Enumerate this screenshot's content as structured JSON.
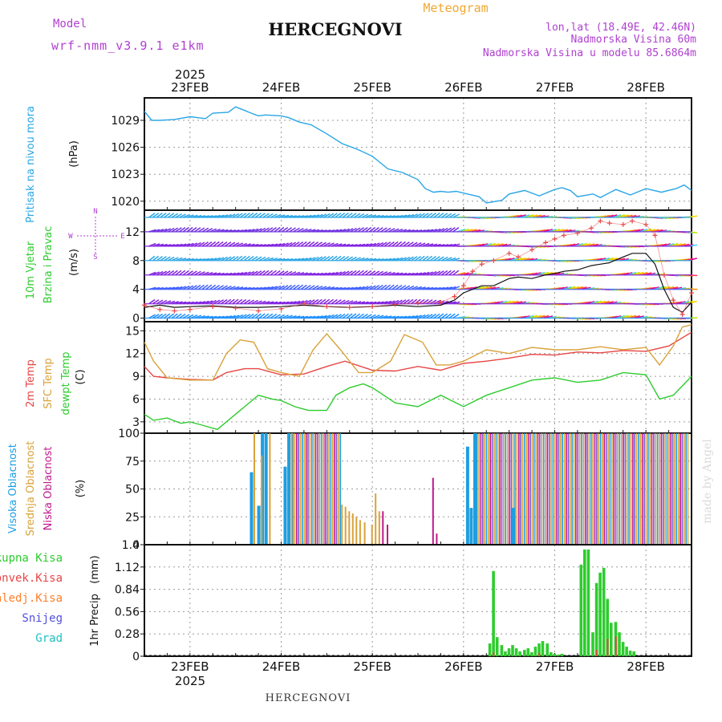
{
  "header": {
    "model_label": "Model",
    "model_name": "wrf-nmm_v3.9.1 e1km",
    "station": "HERCEGNOVI",
    "meteogram": "Meteogram",
    "coords": "lon,lat (18.49E, 42.46N)",
    "elevation": "Nadmorska Visina 60m",
    "model_elevation": "Nadmorska Visina u modelu 85.6864m"
  },
  "footer": {
    "station": "HERCEGNOVI",
    "watermark": "made by Angel"
  },
  "colors": {
    "pressure": "#2aa6e6",
    "temp2m": "#e84646",
    "sfc_temp": "#d9a23a",
    "dewpt": "#2ecc2e",
    "high_cloud": "#1e9ee0",
    "mid_cloud": "#d9a23a",
    "low_cloud": "#c0188c",
    "total_precip": "#2ecc2e",
    "conv_precip": "#e84646",
    "frozen_precip": "#ff7f2a",
    "snow": "#5050e0",
    "graupel": "#20c0c0",
    "title_purple": "#b040d0",
    "meteogram_orange": "#f0a830"
  },
  "chart_data": [
    {
      "type": "line",
      "panel": "pressure",
      "ylabel": [
        "Pritisak na nivou mora",
        "(hPa)"
      ],
      "ylim": [
        1019,
        1031.5
      ],
      "yticks": [
        1020,
        1023,
        1026,
        1029
      ],
      "x_unit": "days since 23FEB 00Z",
      "top_axis": {
        "year": "2025",
        "tick_labels": [
          "23FEB",
          "24FEB",
          "25FEB",
          "26FEB",
          "27FEB",
          "28FEB"
        ]
      },
      "series": [
        {
          "name": "Pritisak",
          "x": [
            -0.5,
            -0.42,
            -0.33,
            -0.17,
            0,
            0.17,
            0.25,
            0.42,
            0.5,
            0.6,
            0.67,
            0.75,
            0.83,
            1,
            1.08,
            1.2,
            1.33,
            1.5,
            1.67,
            1.83,
            2,
            2.17,
            2.33,
            2.5,
            2.58,
            2.67,
            2.75,
            2.83,
            2.92,
            3,
            3.17,
            3.25,
            3.42,
            3.5,
            3.67,
            3.83,
            4,
            4.08,
            4.17,
            4.25,
            4.42,
            4.5,
            4.67,
            4.83,
            5,
            5.17,
            5.33,
            5.42,
            5.5
          ],
          "y": [
            1030,
            1029,
            1029,
            1029.1,
            1029.4,
            1029.2,
            1029.8,
            1029.9,
            1030.5,
            1030.1,
            1029.8,
            1029.5,
            1029.6,
            1029.5,
            1029.3,
            1028.8,
            1028.5,
            1027.5,
            1026.4,
            1025.8,
            1025,
            1023.6,
            1023.2,
            1022.4,
            1021.4,
            1021.0,
            1021.1,
            1021.0,
            1021.1,
            1020.9,
            1020.5,
            1019.8,
            1020.1,
            1020.8,
            1021.2,
            1020.6,
            1021.3,
            1021.5,
            1021.2,
            1020.5,
            1020.8,
            1020.4,
            1021.3,
            1020.7,
            1021.4,
            1021.0,
            1021.4,
            1021.8,
            1021.2
          ]
        }
      ]
    },
    {
      "type": "line",
      "panel": "wind",
      "ylabel": [
        "10m Vjetar",
        "Brzina i Pravac",
        "(m/s)"
      ],
      "compass": {
        "n": "N",
        "s": "S",
        "e": "E",
        "w": "W"
      },
      "ylim": [
        -0.5,
        15
      ],
      "yticks": [
        0,
        4,
        8,
        12
      ],
      "barb_rows": [
        0,
        2,
        4,
        6,
        8,
        10,
        12,
        14
      ],
      "series": [
        {
          "name": "Brzina (line)",
          "x": [
            -0.5,
            -0.33,
            -0.17,
            0,
            0.25,
            0.5,
            0.75,
            1,
            1.25,
            1.5,
            1.75,
            2,
            2.25,
            2.5,
            2.75,
            2.9,
            3,
            3.1,
            3.2,
            3.33,
            3.5,
            3.6,
            3.75,
            3.9,
            4,
            4.1,
            4.25,
            4.4,
            4.5,
            4.6,
            4.75,
            4.85,
            5,
            5.1,
            5.2,
            5.3,
            5.4,
            5.5
          ],
          "y": [
            1.5,
            1.8,
            1.5,
            1.6,
            1.7,
            1.5,
            1.5,
            1.6,
            1.8,
            1.6,
            1.5,
            1.6,
            1.8,
            1.6,
            1.8,
            2.5,
            3.5,
            4.0,
            4.5,
            4.5,
            5.5,
            5.7,
            5.5,
            6.0,
            6.2,
            6.5,
            6.7,
            7.3,
            7.5,
            7.7,
            8.5,
            9.0,
            9.0,
            7.5,
            4.0,
            1.5,
            0.8,
            2.2
          ]
        },
        {
          "name": "Udari (crosses)",
          "x": [
            -0.5,
            -0.33,
            -0.17,
            0,
            0.25,
            0.5,
            0.75,
            1,
            1.25,
            1.5,
            1.75,
            2,
            2.25,
            2.5,
            2.75,
            2.9,
            3,
            3.1,
            3.2,
            3.33,
            3.5,
            3.6,
            3.75,
            3.9,
            4,
            4.1,
            4.25,
            4.4,
            4.5,
            4.6,
            4.75,
            4.85,
            5,
            5.1,
            5.2,
            5.3,
            5.4,
            5.5
          ],
          "y": [
            1.8,
            1.2,
            1.0,
            1.2,
            1.6,
            1.4,
            1.0,
            1.3,
            2.0,
            1.6,
            1.5,
            1.6,
            1.9,
            2.1,
            2.2,
            3.0,
            4.5,
            6.5,
            7.5,
            8.0,
            9.0,
            8.5,
            9.5,
            10.5,
            11.0,
            11.5,
            11.8,
            12.5,
            13.5,
            13.2,
            13.0,
            13.5,
            13.0,
            11.5,
            6.0,
            2.5,
            0.5,
            3.5
          ]
        }
      ]
    },
    {
      "type": "line",
      "panel": "temperature",
      "ylabel": [
        "2m Temp",
        "SFC Temp",
        "dewpt Temp",
        "(C)"
      ],
      "ylim": [
        1.5,
        16.2
      ],
      "yticks": [
        3,
        6,
        9,
        12,
        15
      ],
      "series": [
        {
          "name": "2m Temp",
          "x": [
            -0.5,
            -0.4,
            -0.25,
            0,
            0.25,
            0.4,
            0.6,
            0.75,
            1,
            1.25,
            1.5,
            1.7,
            2,
            2.25,
            2.5,
            2.75,
            3,
            3.25,
            3.5,
            3.75,
            4,
            4.25,
            4.5,
            4.75,
            5,
            5.25,
            5.5
          ],
          "y": [
            10.3,
            9.0,
            8.8,
            8.6,
            8.5,
            9.5,
            10.0,
            10.0,
            9.2,
            9.3,
            10.3,
            11.0,
            9.8,
            9.7,
            10.3,
            9.8,
            10.7,
            11.0,
            11.4,
            11.9,
            11.8,
            12.2,
            12.1,
            12.4,
            12.3,
            13.0,
            14.8
          ]
        },
        {
          "name": "SFC Temp",
          "x": [
            -0.5,
            -0.4,
            -0.25,
            0,
            0.25,
            0.4,
            0.55,
            0.7,
            0.85,
            1,
            1.2,
            1.35,
            1.5,
            1.65,
            1.85,
            2,
            2.2,
            2.35,
            2.55,
            2.7,
            2.85,
            3,
            3.25,
            3.5,
            3.75,
            4,
            4.25,
            4.5,
            4.75,
            5,
            5.15,
            5.3,
            5.4,
            5.5
          ],
          "y": [
            13.5,
            11.0,
            8.8,
            8.5,
            8.5,
            12.0,
            13.8,
            13.5,
            10.0,
            9.5,
            9.0,
            12.5,
            14.6,
            12.5,
            9.5,
            9.5,
            11.0,
            14.5,
            13.5,
            10.5,
            10.5,
            11.0,
            12.5,
            12.0,
            12.8,
            12.5,
            12.5,
            12.9,
            12.5,
            12.8,
            10.5,
            13.0,
            15.5,
            15.8
          ]
        },
        {
          "name": "dewpt Temp",
          "x": [
            -0.5,
            -0.4,
            -0.25,
            -0.1,
            0,
            0.15,
            0.3,
            0.45,
            0.6,
            0.75,
            0.9,
            1,
            1.15,
            1.3,
            1.5,
            1.6,
            1.75,
            1.9,
            2,
            2.25,
            2.5,
            2.75,
            3,
            3.25,
            3.5,
            3.75,
            4,
            4.25,
            4.5,
            4.75,
            5,
            5.15,
            5.3,
            5.5
          ],
          "y": [
            4.0,
            3.2,
            3.5,
            2.8,
            3.0,
            2.5,
            2.0,
            3.5,
            5.0,
            6.5,
            6.0,
            5.8,
            5.0,
            4.5,
            4.5,
            6.5,
            7.5,
            8.0,
            7.5,
            5.5,
            5.0,
            6.5,
            5.0,
            6.5,
            7.5,
            8.5,
            8.8,
            8.2,
            8.5,
            9.5,
            9.2,
            6.0,
            6.5,
            9.0
          ]
        }
      ]
    },
    {
      "type": "bar",
      "panel": "clouds",
      "ylabel": [
        "Visoka Oblacnost",
        "Srednja Oblacnost",
        "Niska Oblacnost",
        "(%)"
      ],
      "ylim": [
        0,
        100
      ],
      "yticks": [
        0,
        25,
        50,
        75,
        100
      ],
      "series": [
        {
          "name": "Visoka Oblacnost",
          "x": [
            0.67,
            0.75,
            0.79,
            0.83,
            1.04,
            1.08,
            3.04,
            3.08,
            3.12,
            3.54
          ],
          "y": [
            65,
            35,
            100,
            100,
            70,
            100,
            88,
            33,
            100,
            33
          ]
        },
        {
          "name": "Srednja Oblacnost",
          "x": [
            0.71,
            0.79,
            0.88,
            1.12,
            1.67,
            1.71,
            1.75,
            1.79,
            1.83,
            1.87,
            1.92,
            2.0,
            2.04,
            2.08
          ],
          "y": [
            100,
            80,
            100,
            100,
            36,
            34,
            30,
            28,
            25,
            22,
            20,
            18,
            46,
            30
          ]
        },
        {
          "name": "Niska Oblacnost",
          "x": [
            2.12,
            2.17,
            2.67,
            2.71
          ],
          "y": [
            30,
            18,
            60,
            10
          ]
        }
      ],
      "dense_blocks": [
        {
          "from": 1.13,
          "to": 1.67,
          "value": 100
        },
        {
          "from": 3.15,
          "to": 5.48,
          "value": 100
        }
      ]
    },
    {
      "type": "bar",
      "panel": "precipitation",
      "ylabel": [
        "1hr Precip",
        "(mm)"
      ],
      "legend": [
        "Ukupna Kisa",
        "Konvek.Kisa",
        "Zaledj.Kisa",
        "Snijeg",
        "Grad"
      ],
      "ylim": [
        0,
        1.4
      ],
      "yticks": [
        0,
        0.28,
        0.56,
        0.84,
        1.12,
        1.4
      ],
      "ytick_labels": [
        "0",
        "0.28",
        "0.56",
        "0.84",
        "1.12",
        "1.4"
      ],
      "bottom_axis": {
        "year": "2025",
        "tick_labels": [
          "23FEB",
          "24FEB",
          "25FEB",
          "26FEB",
          "27FEB",
          "28FEB"
        ]
      },
      "series": [
        {
          "name": "Ukupna Kisa",
          "x": [
            3.29,
            3.33,
            3.37,
            3.42,
            3.46,
            3.5,
            3.54,
            3.58,
            3.62,
            3.67,
            3.71,
            3.75,
            3.79,
            3.83,
            3.87,
            3.92,
            3.96,
            4.0,
            4.04,
            4.08,
            4.29,
            4.33,
            4.37,
            4.42,
            4.46,
            4.5,
            4.54,
            4.58,
            4.62,
            4.67,
            4.71,
            4.75,
            4.79,
            4.83,
            4.87
          ],
          "y": [
            0.16,
            1.07,
            0.24,
            0.14,
            0.06,
            0.1,
            0.14,
            0.1,
            0.06,
            0.08,
            0.1,
            0.05,
            0.12,
            0.16,
            0.19,
            0.16,
            0.05,
            0.03,
            0.02,
            0.03,
            1.15,
            1.34,
            1.34,
            0.3,
            0.92,
            1.05,
            1.11,
            0.72,
            0.42,
            0.43,
            0.3,
            0.18,
            0.12,
            0.07,
            0.06
          ]
        },
        {
          "name": "Konvek.Kisa",
          "x": [
            3.33,
            3.83,
            4.46,
            4.58,
            4.67
          ],
          "y": [
            0.05,
            0.04,
            0.08,
            0.22,
            0.25
          ]
        }
      ]
    }
  ]
}
